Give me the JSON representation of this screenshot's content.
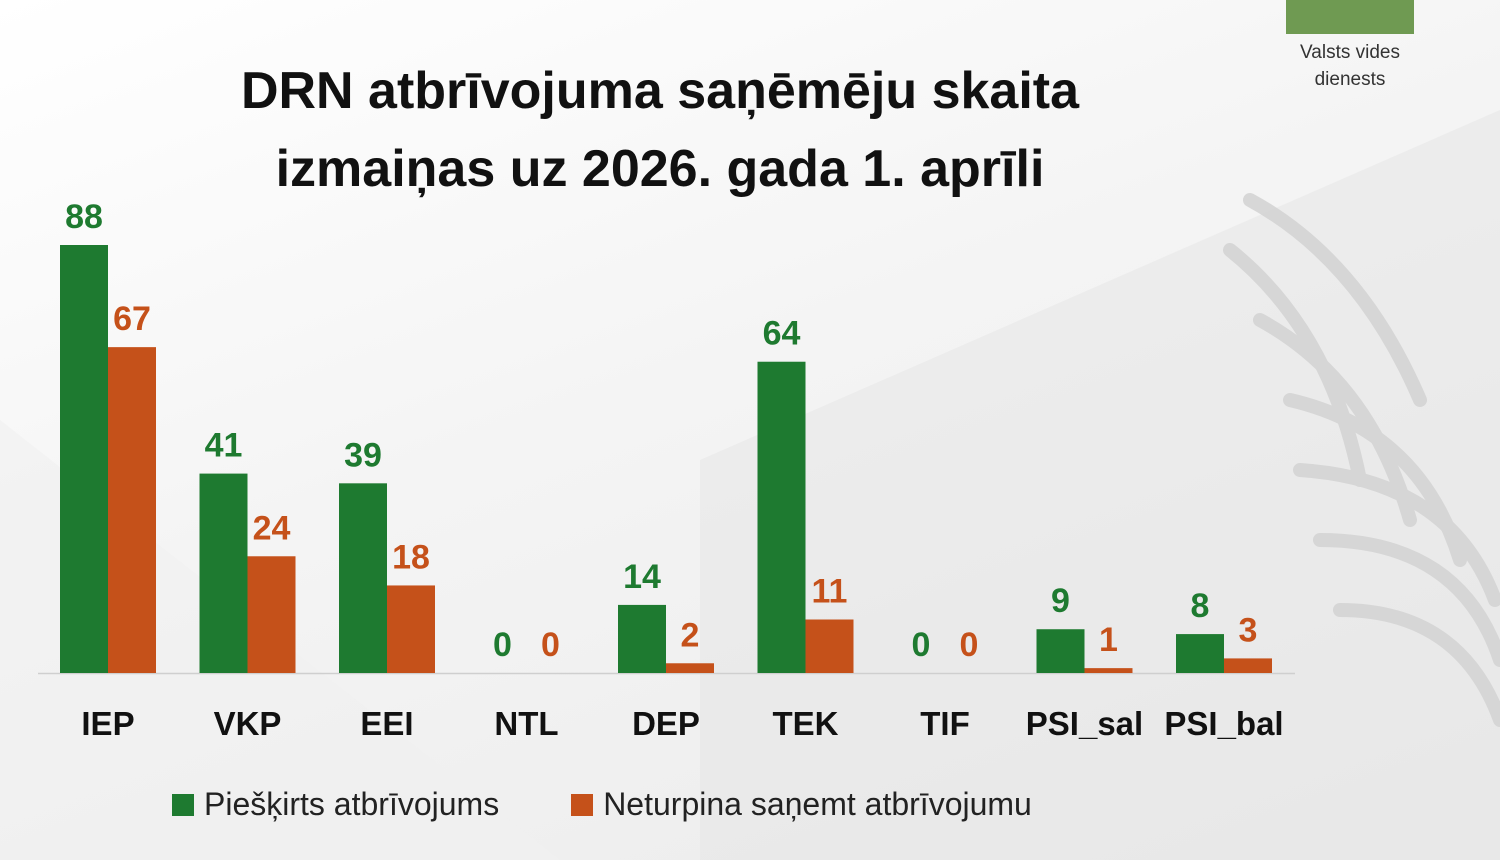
{
  "title": {
    "line1": "DRN atbrīvojuma saņēmēju skaita",
    "line2": "izmaiņas uz 2026. gada 1. aprīli"
  },
  "logo": {
    "line1": "Valsts vides",
    "line2": "dienests",
    "color": "#6f9a52"
  },
  "chart_data": {
    "type": "bar",
    "title": "DRN atbrīvojuma saņēmēju skaita izmaiņas uz 2026. gada 1. aprīli",
    "categories": [
      "IEP",
      "VKP",
      "EEI",
      "NTL",
      "DEP",
      "TEK",
      "TIF",
      "PSI_sal",
      "PSI_bal"
    ],
    "series": [
      {
        "name": "Piešķirts atbrīvojums",
        "color": "#1e7a30",
        "values": [
          88,
          41,
          39,
          0,
          14,
          64,
          0,
          9,
          8
        ]
      },
      {
        "name": "Neturpina saņemt atbrīvojumu",
        "color": "#c5511a",
        "values": [
          67,
          24,
          18,
          0,
          2,
          11,
          0,
          1,
          3
        ]
      }
    ],
    "ylim": [
      0,
      88
    ],
    "grid": false,
    "legend": "bottom"
  }
}
